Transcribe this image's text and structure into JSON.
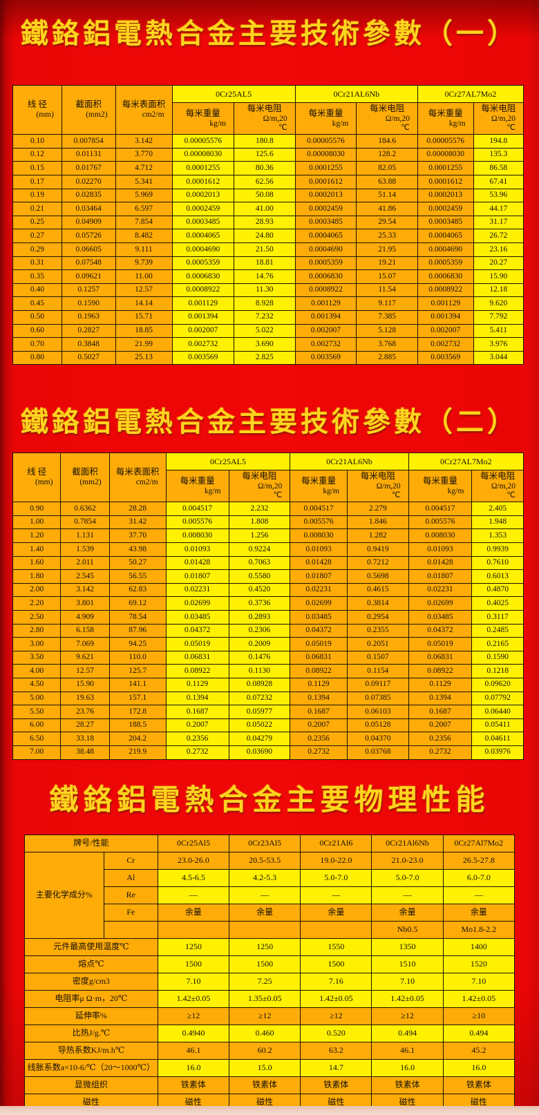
{
  "colors": {
    "background_red": "#ee0606",
    "cell_orange": "#ffac08",
    "cell_yellow": "#fff101",
    "title_gold": "#ffd41e",
    "border_black": "#1c1205",
    "bottom_strip": "#f6ded2"
  },
  "titles": {
    "title1": "鐵鉻鋁電熱合金主要技術參數（一）",
    "title2": "鐵鉻鋁電熱合金主要技術參數（二）",
    "title3": "鐵鉻鋁電熱合金主要物理性能"
  },
  "param_table_1": {
    "base_headers": [
      {
        "label": "线 径",
        "unit": "(mm)"
      },
      {
        "label": "截面积",
        "unit": "(mm2)"
      },
      {
        "label": "每米表面积",
        "unit": "cm2/m"
      }
    ],
    "grades": [
      "0Cr25AL5",
      "0Cr21AL6Nb",
      "0Cr27AL7Mo2"
    ],
    "col_weight": {
      "label": "每米重量",
      "unit": "kg/m"
    },
    "col_resistance": {
      "label": "每米电阻",
      "units": [
        "Ω/m,20",
        "℃"
      ]
    },
    "rows": [
      [
        "0.10",
        "0.007854",
        "3.142",
        "0.00005576",
        "180.8",
        "0.00005576",
        "184.6",
        "0.00005576",
        "194.8"
      ],
      [
        "0.12",
        "0.01131",
        "3.770",
        "0.00008030",
        "125.6",
        "0.00008030",
        "128.2",
        "0.00008030",
        "135.3"
      ],
      [
        "0.15",
        "0.01767",
        "4.712",
        "0.0001255",
        "80.36",
        "0.0001255",
        "82.05",
        "0.0001255",
        "86.58"
      ],
      [
        "0.17",
        "0.02270",
        "5.341",
        "0.0001612",
        "62.56",
        "0.0001612",
        "63.88",
        "0.0001612",
        "67.41"
      ],
      [
        "0.19",
        "0.02835",
        "5.969",
        "0.0002013",
        "50.08",
        "0.0002013",
        "51.14",
        "0.0002013",
        "53.96"
      ],
      [
        "0.21",
        "0.03464",
        "6.597",
        "0.0002459",
        "41.00",
        "0.0002459",
        "41.86",
        "0.0002459",
        "44.17"
      ],
      [
        "0.25",
        "0.04909",
        "7.854",
        "0.0003485",
        "28.93",
        "0.0003485",
        "29.54",
        "0.0003485",
        "31.17"
      ],
      [
        "0.27",
        "0.05726",
        "8.482",
        "0.0004065",
        "24.80",
        "0.0004065",
        "25.33",
        "0.0004065",
        "26.72"
      ],
      [
        "0.29",
        "0.06605",
        "9.111",
        "0.0004690",
        "21.50",
        "0.0004690",
        "21.95",
        "0.0004690",
        "23.16"
      ],
      [
        "0.31",
        "0.07548",
        "9.739",
        "0.0005359",
        "18.81",
        "0.0005359",
        "19.21",
        "0.0005359",
        "20.27"
      ],
      [
        "0.35",
        "0.09621",
        "11.00",
        "0.0006830",
        "14.76",
        "0.0006830",
        "15.07",
        "0.0006830",
        "15.90"
      ],
      [
        "0.40",
        "0.1257",
        "12.57",
        "0.0008922",
        "11.30",
        "0.0008922",
        "11.54",
        "0.0008922",
        "12.18"
      ],
      [
        "0.45",
        "0.1590",
        "14.14",
        "0.001129",
        "8.928",
        "0.001129",
        "9.117",
        "0.001129",
        "9.620"
      ],
      [
        "0.50",
        "0.1963",
        "15.71",
        "0.001394",
        "7.232",
        "0.001394",
        "7.385",
        "0.001394",
        "7.792"
      ],
      [
        "0.60",
        "0.2827",
        "18.85",
        "0.002007",
        "5.022",
        "0.002007",
        "5.128",
        "0.002007",
        "5.411"
      ],
      [
        "0.70",
        "0.3848",
        "21.99",
        "0.002732",
        "3.690",
        "0.002732",
        "3.768",
        "0.002732",
        "3.976"
      ],
      [
        "0.80",
        "0.5027",
        "25.13",
        "0.003569",
        "2.825",
        "0.003569",
        "2.885",
        "0.003569",
        "3.044"
      ]
    ]
  },
  "param_table_2": {
    "base_headers": [
      {
        "label": "线 径",
        "unit": "(mm)"
      },
      {
        "label": "截面积",
        "unit": "(mm2)"
      },
      {
        "label": "每米表面积",
        "unit": "cm2/m"
      }
    ],
    "grades": [
      "0Cr25AL5",
      "0Cr21AL6Nb",
      "0Cr27AL7Mo2"
    ],
    "col_weight": {
      "label": "每米重量",
      "unit": "kg/m"
    },
    "col_resistance": {
      "label": "每米电阻",
      "units": [
        "Ω/m,20",
        "℃"
      ]
    },
    "rows": [
      [
        "0.90",
        "0.6362",
        "28.28",
        "0.004517",
        "2.232",
        "0.004517",
        "2.279",
        "0.004517",
        "2.405"
      ],
      [
        "1.00",
        "0.7854",
        "31.42",
        "0.005576",
        "1.808",
        "0.005576",
        "1.846",
        "0.005576",
        "1.948"
      ],
      [
        "1.20",
        "1.131",
        "37.70",
        "0.008030",
        "1.256",
        "0.008030",
        "1.282",
        "0.008030",
        "1.353"
      ],
      [
        "1.40",
        "1.539",
        "43.98",
        "0.01093",
        "0.9224",
        "0.01093",
        "0.9419",
        "0.01093",
        "0.9939"
      ],
      [
        "1.60",
        "2.011",
        "50.27",
        "0.01428",
        "0.7063",
        "0.01428",
        "0.7212",
        "0.01428",
        "0.7610"
      ],
      [
        "1.80",
        "2.545",
        "56.55",
        "0.01807",
        "0.5580",
        "0.01807",
        "0.5698",
        "0.01807",
        "0.6013"
      ],
      [
        "2.00",
        "3.142",
        "62.83",
        "0.02231",
        "0.4520",
        "0.02231",
        "0.4615",
        "0.02231",
        "0.4870"
      ],
      [
        "2.20",
        "3.801",
        "69.12",
        "0.02699",
        "0.3736",
        "0.02699",
        "0.3814",
        "0.02699",
        "0.4025"
      ],
      [
        "2.50",
        "4.909",
        "78.54",
        "0.03485",
        "0.2893",
        "0.03485",
        "0.2954",
        "0.03485",
        "0.3117"
      ],
      [
        "2.80",
        "6.158",
        "87.96",
        "0.04372",
        "0.2306",
        "0.04372",
        "0.2355",
        "0.04372",
        "0.2485"
      ],
      [
        "3.00",
        "7.069",
        "94.25",
        "0.05019",
        "0.2009",
        "0.05019",
        "0.2051",
        "0.05019",
        "0.2165"
      ],
      [
        "3.50",
        "9.621",
        "110.0",
        "0.06831",
        "0.1476",
        "0.06831",
        "0.1507",
        "0.06831",
        "0.1590"
      ],
      [
        "4.00",
        "12.57",
        "125.7",
        "0.08922",
        "0.1130",
        "0.08922",
        "0.1154",
        "0.08922",
        "0.1218"
      ],
      [
        "4.50",
        "15.90",
        "141.1",
        "0.1129",
        "0.08928",
        "0.1129",
        "0.09117",
        "0.1129",
        "0.09620"
      ],
      [
        "5.00",
        "19.63",
        "157.1",
        "0.1394",
        "0.07232",
        "0.1394",
        "0.07385",
        "0.1394",
        "0.07792"
      ],
      [
        "5.50",
        "23.76",
        "172.8",
        "0.1687",
        "0.05977",
        "0.1687",
        "0.06103",
        "0.1687",
        "0.06440"
      ],
      [
        "6.00",
        "28.27",
        "188.5",
        "0.2007",
        "0.05022",
        "0.2007",
        "0.05128",
        "0.2007",
        "0.05411"
      ],
      [
        "6.50",
        "33.18",
        "204.2",
        "0.2356",
        "0.04279",
        "0.2356",
        "0.04370",
        "0.2356",
        "0.04611"
      ],
      [
        "7.00",
        "38.48",
        "219.9",
        "0.2732",
        "0.03690",
        "0.2732",
        "0.03768",
        "0.2732",
        "0.03976"
      ]
    ]
  },
  "phys_table": {
    "corner_label": "牌号/性能",
    "grades": [
      "0Cr25Al5",
      "0Cr23Al5",
      "0Cr21Al6",
      "0Cr21Al6Nb",
      "0Cr27Al7Mo2"
    ],
    "chem_group_label": "主要化学成分%",
    "chem_rows": [
      {
        "element": "Cr",
        "tone": "o",
        "values": [
          "23.0-26.0",
          "20.5-53.5",
          "19.0-22.0",
          "21.0-23.0",
          "26.5-27.8"
        ]
      },
      {
        "element": "Al",
        "tone": "y",
        "values": [
          "4.5-6.5",
          "4.2-5.3",
          "5.0-7.0",
          "5.0-7.0",
          "6.0-7.0"
        ]
      },
      {
        "element": "Re",
        "tone": "y",
        "values": [
          "—",
          "—",
          "—",
          "—",
          "—"
        ]
      },
      {
        "element": "Fe",
        "tone": "o",
        "values": [
          "余量",
          "余量",
          "余量",
          "余量",
          "余量"
        ]
      },
      {
        "element": "",
        "tone": "o",
        "values": [
          "",
          "",
          "",
          "Nb0.5",
          "Mo1.8-2.2"
        ]
      }
    ],
    "property_rows": [
      {
        "label": "元件最高使用温度℃",
        "tone": "y",
        "values": [
          "1250",
          "1250",
          "1550",
          "1350",
          "1400"
        ]
      },
      {
        "label": "熔点℃",
        "tone": "y",
        "values": [
          "1500",
          "1500",
          "1500",
          "1510",
          "1520"
        ]
      },
      {
        "label": "密度g/cm3",
        "tone": "y",
        "values": [
          "7.10",
          "7.25",
          "7.16",
          "7.10",
          "7.10"
        ]
      },
      {
        "label": "电阻率μ Ω·m，20℃",
        "tone": "y",
        "values": [
          "1.42±0.05",
          "1.35±0.05",
          "1.42±0.05",
          "1.42±0.05",
          "1.42±0.05"
        ]
      },
      {
        "label": "延伸率%",
        "tone": "o",
        "values": [
          "≥12",
          "≥12",
          "≥12",
          "≥12",
          "≥10"
        ]
      },
      {
        "label": "比热J/g.℃",
        "tone": "y",
        "values": [
          "0.4940",
          "0.460",
          "0.520",
          "0.494",
          "0.494"
        ]
      },
      {
        "label": "导热系数KJ/m.h℃",
        "tone": "o",
        "values": [
          "46.1",
          "60.2",
          "63.2",
          "46.1",
          "45.2"
        ]
      },
      {
        "label": "线胀系数a×10-6/℃（20～1000℃）",
        "tone": "y",
        "values": [
          "16.0",
          "15.0",
          "14.7",
          "16.0",
          "16.0"
        ]
      },
      {
        "label": "显微组织",
        "tone": "o",
        "values": [
          "铁素体",
          "铁素体",
          "铁素体",
          "铁素体",
          "铁素体"
        ]
      },
      {
        "label": "磁性",
        "tone": "o",
        "values": [
          "磁性",
          "磁性",
          "磁性",
          "磁性",
          "磁性"
        ]
      }
    ]
  }
}
